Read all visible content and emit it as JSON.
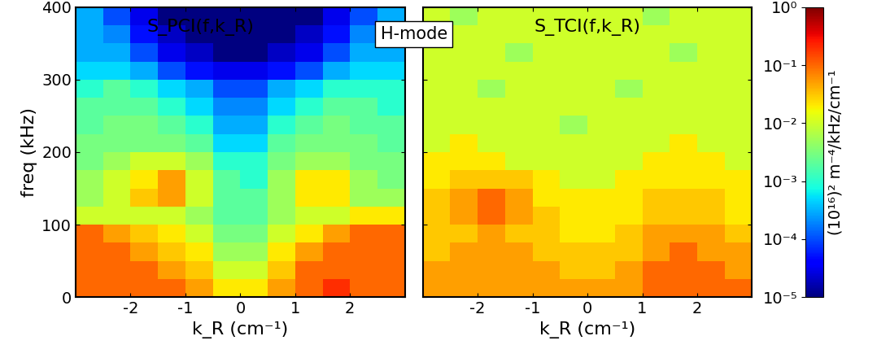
{
  "chart_data": {
    "type": "heatmap",
    "log": true,
    "annotation": "H-mode",
    "xlabel": "k_R (cm⁻¹)",
    "ylabel": "freq (kHz)",
    "xlim": [
      -3,
      3
    ],
    "ylim": [
      0,
      400
    ],
    "xticks": [
      -2,
      -1,
      0,
      1,
      2
    ],
    "yticks": [
      0,
      100,
      200,
      300,
      400
    ],
    "tick_labels": true,
    "x_edges": [
      -3,
      -2.5,
      -2,
      -1.5,
      -1,
      -0.5,
      0,
      0.5,
      1,
      1.5,
      2,
      2.5,
      3
    ],
    "y_edges": [
      0,
      25,
      50,
      75,
      100,
      125,
      150,
      175,
      200,
      225,
      250,
      275,
      300,
      325,
      350,
      375,
      400
    ],
    "colorbar": {
      "label": "(10¹⁶)² m⁻⁴/kHz/cm⁻¹",
      "range": [
        1e-05,
        1
      ],
      "ticks": [
        {
          "value": 1,
          "label": "10⁰"
        },
        {
          "value": 0.1,
          "label": "10⁻¹"
        },
        {
          "value": 0.01,
          "label": "10⁻²"
        },
        {
          "value": 0.001,
          "label": "10⁻³"
        },
        {
          "value": 0.0001,
          "label": "10⁻⁴"
        },
        {
          "value": 1e-05,
          "label": "10⁻⁵"
        }
      ]
    },
    "panels": [
      {
        "title": "S_PCI(f,k_R)",
        "cells": [
          [
            0.1,
            0.1,
            0.1,
            0.1,
            0.05,
            0.02,
            0.02,
            0.05,
            0.1,
            0.2,
            0.1,
            0.1
          ],
          [
            0.1,
            0.1,
            0.1,
            0.05,
            0.03,
            0.01,
            0.01,
            0.03,
            0.1,
            0.1,
            0.1,
            0.1
          ],
          [
            0.1,
            0.1,
            0.05,
            0.03,
            0.02,
            0.005,
            0.005,
            0.02,
            0.05,
            0.1,
            0.1,
            0.1
          ],
          [
            0.1,
            0.05,
            0.03,
            0.02,
            0.01,
            0.003,
            0.003,
            0.01,
            0.02,
            0.05,
            0.1,
            0.1
          ],
          [
            0.01,
            0.01,
            0.01,
            0.01,
            0.005,
            0.002,
            0.002,
            0.005,
            0.01,
            0.01,
            0.02,
            0.02
          ],
          [
            0.005,
            0.01,
            0.03,
            0.05,
            0.01,
            0.002,
            0.002,
            0.005,
            0.02,
            0.02,
            0.005,
            0.005
          ],
          [
            0.005,
            0.01,
            0.02,
            0.05,
            0.01,
            0.002,
            0.001,
            0.005,
            0.02,
            0.02,
            0.005,
            0.003
          ],
          [
            0.003,
            0.005,
            0.01,
            0.01,
            0.005,
            0.001,
            0.001,
            0.003,
            0.005,
            0.005,
            0.003,
            0.003
          ],
          [
            0.003,
            0.003,
            0.003,
            0.003,
            0.002,
            0.0005,
            0.0005,
            0.002,
            0.003,
            0.003,
            0.003,
            0.002
          ],
          [
            0.002,
            0.003,
            0.003,
            0.002,
            0.001,
            0.0003,
            0.0003,
            0.001,
            0.002,
            0.003,
            0.002,
            0.002
          ],
          [
            0.002,
            0.002,
            0.002,
            0.001,
            0.0005,
            0.0002,
            0.0002,
            0.0005,
            0.001,
            0.002,
            0.002,
            0.001
          ],
          [
            0.001,
            0.002,
            0.001,
            0.0005,
            0.0003,
            0.0001,
            0.0001,
            0.0003,
            0.0005,
            0.001,
            0.001,
            0.001
          ],
          [
            0.0005,
            0.0005,
            0.0003,
            0.0001,
            5e-05,
            3e-05,
            3e-05,
            5e-05,
            0.0001,
            0.0003,
            0.0005,
            0.0005
          ],
          [
            0.0003,
            0.0003,
            0.0001,
            3e-05,
            2e-05,
            1e-05,
            1e-05,
            2e-05,
            3e-05,
            0.0001,
            0.0003,
            0.0003
          ],
          [
            0.0003,
            0.0002,
            5e-05,
            2e-05,
            1e-05,
            1e-05,
            1e-05,
            1e-05,
            2e-05,
            5e-05,
            0.0002,
            0.0003
          ],
          [
            0.0003,
            0.0001,
            3e-05,
            1e-05,
            1e-05,
            1e-05,
            1e-05,
            1e-05,
            1e-05,
            3e-05,
            0.0001,
            0.0003
          ]
        ]
      },
      {
        "title": "S_TCI(f,k_R)",
        "cells": [
          [
            0.05,
            0.05,
            0.05,
            0.05,
            0.05,
            0.05,
            0.05,
            0.05,
            0.1,
            0.1,
            0.1,
            0.1
          ],
          [
            0.05,
            0.05,
            0.05,
            0.05,
            0.05,
            0.03,
            0.03,
            0.05,
            0.1,
            0.1,
            0.1,
            0.05
          ],
          [
            0.03,
            0.05,
            0.05,
            0.05,
            0.03,
            0.03,
            0.03,
            0.03,
            0.05,
            0.1,
            0.05,
            0.05
          ],
          [
            0.03,
            0.03,
            0.05,
            0.03,
            0.03,
            0.02,
            0.02,
            0.03,
            0.05,
            0.05,
            0.05,
            0.03
          ],
          [
            0.03,
            0.05,
            0.1,
            0.05,
            0.03,
            0.02,
            0.02,
            0.02,
            0.03,
            0.03,
            0.03,
            0.02
          ],
          [
            0.03,
            0.05,
            0.1,
            0.05,
            0.02,
            0.02,
            0.02,
            0.02,
            0.03,
            0.03,
            0.03,
            0.02
          ],
          [
            0.02,
            0.03,
            0.03,
            0.03,
            0.02,
            0.01,
            0.01,
            0.02,
            0.02,
            0.02,
            0.02,
            0.02
          ],
          [
            0.02,
            0.02,
            0.02,
            0.01,
            0.01,
            0.01,
            0.01,
            0.01,
            0.02,
            0.02,
            0.02,
            0.01
          ],
          [
            0.01,
            0.02,
            0.01,
            0.01,
            0.01,
            0.01,
            0.01,
            0.01,
            0.01,
            0.02,
            0.01,
            0.01
          ],
          [
            0.01,
            0.01,
            0.01,
            0.01,
            0.01,
            0.005,
            0.01,
            0.01,
            0.01,
            0.01,
            0.01,
            0.01
          ],
          [
            0.01,
            0.01,
            0.01,
            0.01,
            0.01,
            0.01,
            0.01,
            0.01,
            0.01,
            0.01,
            0.01,
            0.01
          ],
          [
            0.01,
            0.01,
            0.005,
            0.01,
            0.01,
            0.01,
            0.01,
            0.005,
            0.01,
            0.01,
            0.01,
            0.01
          ],
          [
            0.01,
            0.01,
            0.01,
            0.01,
            0.01,
            0.01,
            0.01,
            0.01,
            0.01,
            0.01,
            0.01,
            0.01
          ],
          [
            0.01,
            0.01,
            0.01,
            0.005,
            0.01,
            0.01,
            0.01,
            0.01,
            0.01,
            0.005,
            0.01,
            0.01
          ],
          [
            0.01,
            0.01,
            0.01,
            0.01,
            0.01,
            0.01,
            0.01,
            0.01,
            0.01,
            0.01,
            0.01,
            0.01
          ],
          [
            0.01,
            0.005,
            0.01,
            0.01,
            0.01,
            0.01,
            0.01,
            0.01,
            0.005,
            0.01,
            0.01,
            0.01
          ]
        ]
      }
    ]
  }
}
